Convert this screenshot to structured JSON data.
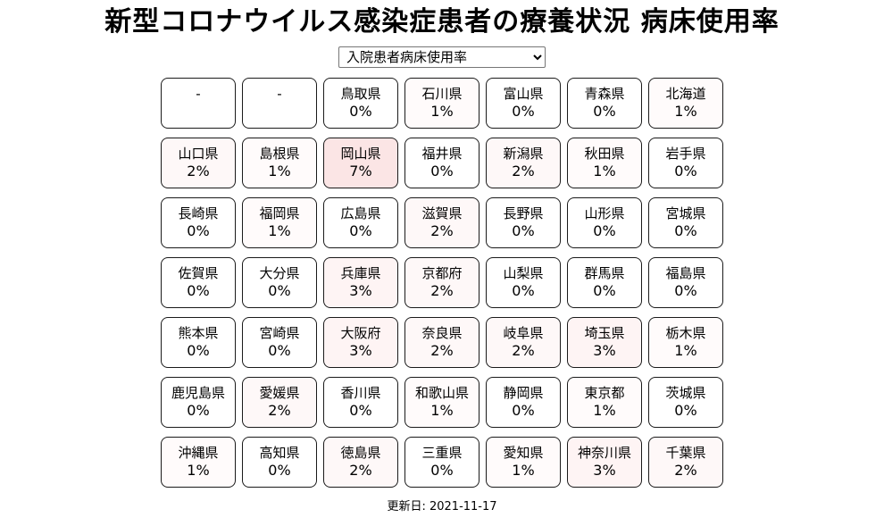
{
  "title": "新型コロナウイルス感染症患者の療養状況 病床使用率",
  "controls": {
    "metric_select": {
      "selected": "入院患者病床使用率"
    }
  },
  "footer": {
    "updated_label": "更新日: 2021-11-17"
  },
  "colors": {
    "page_background": "#ffffff",
    "tile_border": "#1a1a1a",
    "heat_base": "#e64545",
    "heat_alpha_per_percent": 0.02
  },
  "chart_data": {
    "type": "heatmap",
    "title": "新型コロナウイルス感染症患者の療養状況 病床使用率",
    "metric": "入院患者病床使用率",
    "unit": "%",
    "updated": "2021-11-17",
    "grid_columns": 7,
    "cells": [
      {
        "name": "-",
        "value": null
      },
      {
        "name": "-",
        "value": null
      },
      {
        "name": "鳥取県",
        "value": 0
      },
      {
        "name": "石川県",
        "value": 1
      },
      {
        "name": "富山県",
        "value": 0
      },
      {
        "name": "青森県",
        "value": 0
      },
      {
        "name": "北海道",
        "value": 1
      },
      {
        "name": "山口県",
        "value": 2
      },
      {
        "name": "島根県",
        "value": 1
      },
      {
        "name": "岡山県",
        "value": 7
      },
      {
        "name": "福井県",
        "value": 0
      },
      {
        "name": "新潟県",
        "value": 2
      },
      {
        "name": "秋田県",
        "value": 1
      },
      {
        "name": "岩手県",
        "value": 0
      },
      {
        "name": "長崎県",
        "value": 0
      },
      {
        "name": "福岡県",
        "value": 1
      },
      {
        "name": "広島県",
        "value": 0
      },
      {
        "name": "滋賀県",
        "value": 2
      },
      {
        "name": "長野県",
        "value": 0
      },
      {
        "name": "山形県",
        "value": 0
      },
      {
        "name": "宮城県",
        "value": 0
      },
      {
        "name": "佐賀県",
        "value": 0
      },
      {
        "name": "大分県",
        "value": 0
      },
      {
        "name": "兵庫県",
        "value": 3
      },
      {
        "name": "京都府",
        "value": 2
      },
      {
        "name": "山梨県",
        "value": 0
      },
      {
        "name": "群馬県",
        "value": 0
      },
      {
        "name": "福島県",
        "value": 0
      },
      {
        "name": "熊本県",
        "value": 0
      },
      {
        "name": "宮崎県",
        "value": 0
      },
      {
        "name": "大阪府",
        "value": 3
      },
      {
        "name": "奈良県",
        "value": 2
      },
      {
        "name": "岐阜県",
        "value": 2
      },
      {
        "name": "埼玉県",
        "value": 3
      },
      {
        "name": "栃木県",
        "value": 1
      },
      {
        "name": "鹿児島県",
        "value": 0
      },
      {
        "name": "愛媛県",
        "value": 2
      },
      {
        "name": "香川県",
        "value": 0
      },
      {
        "name": "和歌山県",
        "value": 1
      },
      {
        "name": "静岡県",
        "value": 0
      },
      {
        "name": "東京都",
        "value": 1
      },
      {
        "name": "茨城県",
        "value": 0
      },
      {
        "name": "沖縄県",
        "value": 1
      },
      {
        "name": "高知県",
        "value": 0
      },
      {
        "name": "徳島県",
        "value": 2
      },
      {
        "name": "三重県",
        "value": 0
      },
      {
        "name": "愛知県",
        "value": 1
      },
      {
        "name": "神奈川県",
        "value": 3
      },
      {
        "name": "千葉県",
        "value": 2
      }
    ]
  }
}
